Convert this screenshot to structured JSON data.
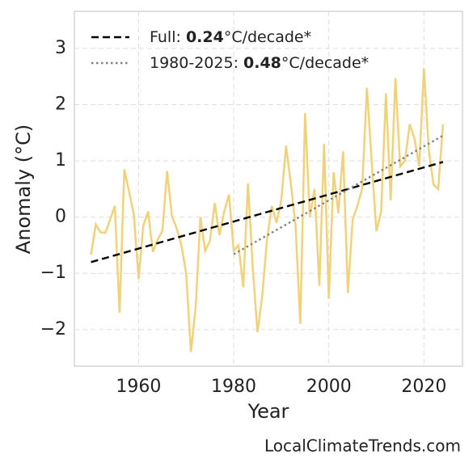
{
  "chart_data": {
    "type": "line",
    "xlabel": "Year",
    "ylabel": "Anomaly (°C)",
    "watermark": "LocalClimateTrends.com",
    "xlim": [
      1946.5,
      2028.1
    ],
    "ylim": [
      -2.65,
      3.66
    ],
    "xticks": [
      1960,
      1980,
      2000,
      2020
    ],
    "yticks": [
      {
        "value": -2,
        "label": "−2"
      },
      {
        "value": -1,
        "label": "−1"
      },
      0,
      1,
      2,
      3
    ],
    "grid": true,
    "legend": "upper left",
    "series": [
      {
        "color": "#f0d27a",
        "x": [
          1950,
          1951,
          1952,
          1953,
          1954,
          1955,
          1956,
          1957,
          1958,
          1959,
          1960,
          1961,
          1962,
          1963,
          1964,
          1965,
          1966,
          1967,
          1968,
          1969,
          1970,
          1971,
          1972,
          1973,
          1974,
          1975,
          1976,
          1977,
          1978,
          1979,
          1980,
          1981,
          1982,
          1983,
          1984,
          1985,
          1986,
          1987,
          1988,
          1989,
          1990,
          1991,
          1992,
          1993,
          1994,
          1995,
          1996,
          1997,
          1998,
          1999,
          2000,
          2001,
          2002,
          2003,
          2004,
          2005,
          2006,
          2007,
          2008,
          2009,
          2010,
          2011,
          2012,
          2013,
          2014,
          2015,
          2016,
          2017,
          2018,
          2019,
          2020,
          2021,
          2022,
          2023,
          2024
        ],
        "values": [
          -0.67,
          -0.13,
          -0.27,
          -0.28,
          -0.05,
          0.2,
          -1.7,
          0.85,
          0.45,
          0.05,
          -1.1,
          -0.15,
          0.1,
          -0.62,
          -0.4,
          -0.25,
          0.82,
          0.02,
          -0.2,
          -0.5,
          -1.0,
          -2.4,
          -1.6,
          0.0,
          -0.6,
          -0.42,
          0.25,
          -0.32,
          0.1,
          0.4,
          -0.6,
          -0.5,
          -1.25,
          0.6,
          -0.9,
          -2.05,
          -1.4,
          -0.4,
          0.2,
          -0.1,
          0.3,
          1.27,
          0.6,
          -0.15,
          -1.9,
          1.85,
          0.0,
          0.5,
          -1.22,
          1.3,
          -1.45,
          0.8,
          0.07,
          1.17,
          -1.35,
          -0.05,
          0.2,
          0.5,
          2.3,
          1.0,
          -0.25,
          0.1,
          2.2,
          0.3,
          2.47,
          0.9,
          1.0,
          1.65,
          1.4,
          0.9,
          2.65,
          1.2,
          0.58,
          0.5,
          1.65
        ]
      },
      {
        "name": [
          "Full: ",
          "0.24",
          "°C/decade*"
        ],
        "color": "#000000",
        "dash": "dashed",
        "x": [
          1950,
          2024
        ],
        "values": [
          -0.8,
          0.98
        ]
      },
      {
        "name": [
          "1980-2025: ",
          "0.48",
          "°C/decade*"
        ],
        "color": "#808080",
        "dash": "dotted",
        "x": [
          1980,
          2024
        ],
        "values": [
          -0.66,
          1.45
        ]
      }
    ]
  }
}
